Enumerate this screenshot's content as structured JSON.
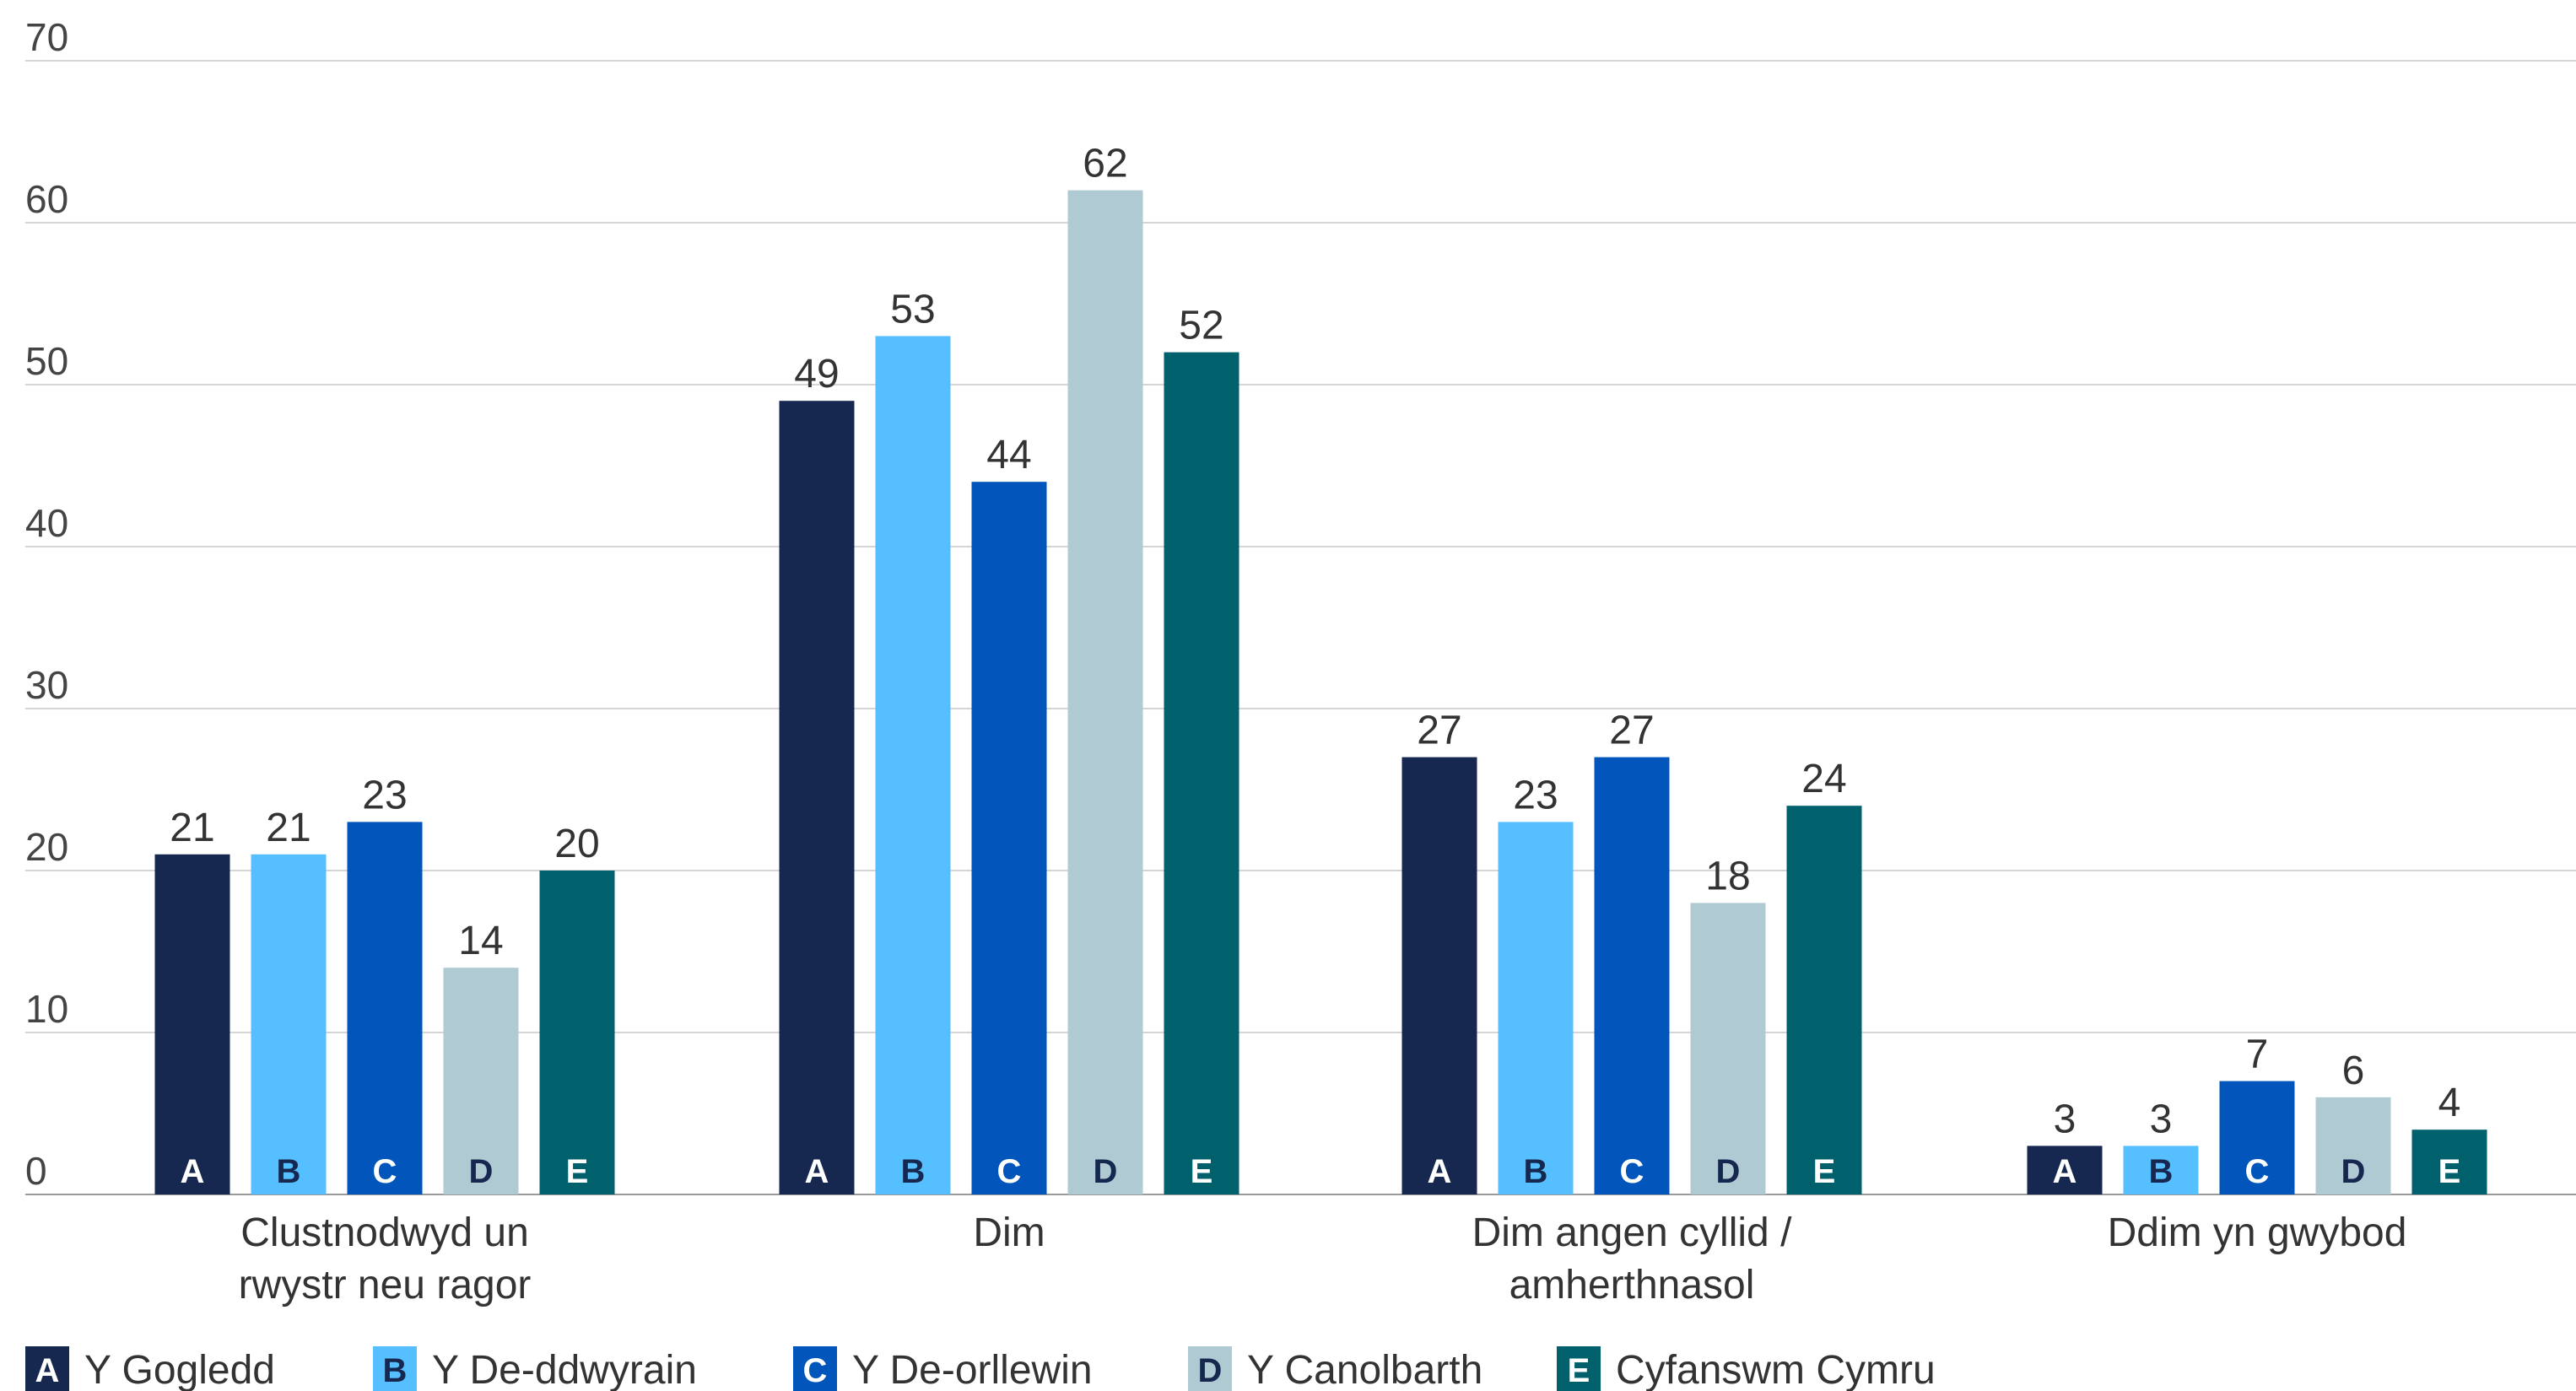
{
  "chart_data": {
    "type": "bar",
    "categories": [
      [
        "Clustnodwyd un",
        "rwystr neu ragor"
      ],
      [
        "Dim"
      ],
      [
        "Dim angen cyllid /",
        "amherthnasol"
      ],
      [
        "Ddim yn gwybod"
      ]
    ],
    "series": [
      {
        "name": "Y Gogledd",
        "letter": "A",
        "color": "#16284f",
        "letter_color": "#ffffff",
        "values": [
          21,
          49,
          27,
          3
        ]
      },
      {
        "name": "Y De-ddwyrain",
        "letter": "B",
        "color": "#55bfff",
        "letter_color": "#16284f",
        "values": [
          21,
          53,
          23,
          3
        ]
      },
      {
        "name": "Y De-orllewin",
        "letter": "C",
        "color": "#0256bb",
        "letter_color": "#ffffff",
        "values": [
          23,
          44,
          27,
          7
        ]
      },
      {
        "name": "Y Canolbarth",
        "letter": "D",
        "color": "#b0cad3",
        "letter_color": "#16284f",
        "values": [
          14,
          62,
          18,
          6
        ]
      },
      {
        "name": "Cyfanswm Cymru",
        "letter": "E",
        "color": "#00616c",
        "letter_color": "#ffffff",
        "values": [
          20,
          52,
          24,
          4
        ]
      }
    ],
    "y_ticks": [
      0,
      10,
      20,
      30,
      40,
      50,
      60,
      70
    ],
    "ylim": [
      0,
      70
    ],
    "grid": true,
    "legend_position": "bottom"
  }
}
